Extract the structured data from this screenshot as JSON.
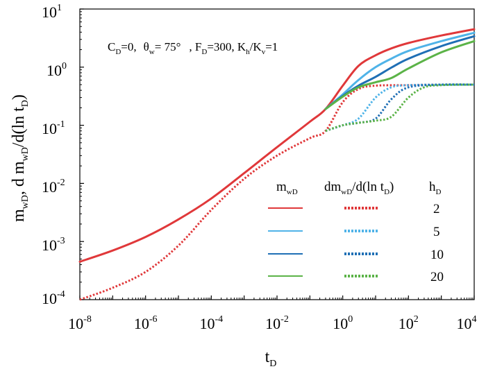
{
  "chart_data": {
    "type": "line",
    "x_scale": "log",
    "y_scale": "log",
    "xlim": [
      1e-08,
      10000
    ],
    "ylim": [
      0.0001,
      10
    ],
    "x_ticks": [
      {
        "base": "10",
        "exp": "-8"
      },
      {
        "base": "10",
        "exp": "-6"
      },
      {
        "base": "10",
        "exp": "-4"
      },
      {
        "base": "10",
        "exp": "-2"
      },
      {
        "base": "10",
        "exp": "0"
      },
      {
        "base": "10",
        "exp": "2"
      },
      {
        "base": "10",
        "exp": "4"
      }
    ],
    "y_ticks": [
      {
        "base": "10",
        "exp": "-4"
      },
      {
        "base": "10",
        "exp": "-3"
      },
      {
        "base": "10",
        "exp": "-2"
      },
      {
        "base": "10",
        "exp": "-1"
      },
      {
        "base": "10",
        "exp": "0"
      },
      {
        "base": "10",
        "exp": "1"
      }
    ],
    "xlabel": {
      "main": "t",
      "sub": "D"
    },
    "ylabel": {
      "part1": "m",
      "sub1": "wD",
      "part2": ", d m",
      "sub2": "wD",
      "part3": "/d(ln t",
      "sub3": "D",
      "part4": ")"
    },
    "annotation": {
      "c": "C",
      "c_sub": "D",
      "c_val": "=0,",
      "theta": "θ",
      "theta_sub": "w",
      "theta_val": "= 75°",
      "f": ", F",
      "f_sub": "D",
      "f_val": "=300, K",
      "kh_sub": "h",
      "slash": "/K",
      "kv_sub": "v",
      "k_val": "=1"
    },
    "legend": {
      "col1": {
        "main": "m",
        "sub": "wD"
      },
      "col2": {
        "main": "dm",
        "sub": "wD",
        "rest": "/d(ln t",
        "sub2": "D",
        "end": ")"
      },
      "col3": {
        "main": "h",
        "sub": "D"
      },
      "rows": [
        {
          "label": "2",
          "color": "#e0383a"
        },
        {
          "label": "5",
          "color": "#4fb3e8"
        },
        {
          "label": "10",
          "color": "#1f6fb5"
        },
        {
          "label": "20",
          "color": "#5bb347"
        }
      ]
    },
    "series": [
      {
        "name": "m_wD, h_D=2",
        "color": "#e0383a",
        "style": "solid",
        "x": [
          1e-08,
          1e-07,
          1e-06,
          1e-05,
          0.0001,
          0.001,
          0.01,
          0.1,
          0.3,
          1,
          3,
          10,
          30,
          100,
          1000,
          10000
        ],
        "y": [
          0.00045,
          0.0007,
          0.0012,
          0.0024,
          0.0055,
          0.015,
          0.042,
          0.115,
          0.19,
          0.48,
          1.05,
          1.6,
          2.1,
          2.6,
          3.5,
          4.5
        ]
      },
      {
        "name": "m_wD, h_D=5",
        "color": "#4fb3e8",
        "style": "solid",
        "x": [
          0.3,
          1,
          3,
          10,
          30,
          100,
          1000,
          10000
        ],
        "y": [
          0.19,
          0.34,
          0.6,
          1.0,
          1.4,
          1.9,
          2.8,
          3.9
        ]
      },
      {
        "name": "m_wD, h_D=10",
        "color": "#1f6fb5",
        "style": "solid",
        "x": [
          0.3,
          1,
          3,
          10,
          30,
          100,
          1000,
          10000
        ],
        "y": [
          0.19,
          0.32,
          0.48,
          0.68,
          0.98,
          1.4,
          2.3,
          3.4
        ]
      },
      {
        "name": "m_wD, h_D=20",
        "color": "#5bb347",
        "style": "solid",
        "x": [
          0.3,
          1,
          3,
          10,
          30,
          100,
          1000,
          10000
        ],
        "y": [
          0.19,
          0.31,
          0.45,
          0.55,
          0.65,
          0.95,
          1.8,
          2.8
        ]
      },
      {
        "name": "dm_wD/d(ln t_D), h_D=2",
        "color": "#e0383a",
        "style": "dotted",
        "x": [
          1e-08,
          1e-07,
          1e-06,
          1e-05,
          0.0001,
          0.001,
          0.01,
          0.1,
          0.3,
          1,
          3,
          10,
          100,
          1000,
          10000
        ],
        "y": [
          0.0001,
          0.00016,
          0.0003,
          0.00085,
          0.0035,
          0.012,
          0.03,
          0.06,
          0.08,
          0.25,
          0.42,
          0.48,
          0.49,
          0.5,
          0.5
        ]
      },
      {
        "name": "dm_wD/d(ln t_D), h_D=5",
        "color": "#4fb3e8",
        "style": "dotted",
        "x": [
          0.3,
          1,
          3,
          10,
          30,
          100,
          1000,
          10000
        ],
        "y": [
          0.08,
          0.1,
          0.13,
          0.3,
          0.45,
          0.49,
          0.5,
          0.5
        ]
      },
      {
        "name": "dm_wD/d(ln t_D), h_D=10",
        "color": "#1f6fb5",
        "style": "dotted",
        "x": [
          0.3,
          1,
          3,
          10,
          30,
          100,
          1000,
          10000
        ],
        "y": [
          0.08,
          0.1,
          0.11,
          0.13,
          0.28,
          0.45,
          0.5,
          0.5
        ]
      },
      {
        "name": "dm_wD/d(ln t_D), h_D=20",
        "color": "#5bb347",
        "style": "dotted",
        "x": [
          0.3,
          1,
          3,
          10,
          30,
          100,
          300,
          1000,
          10000
        ],
        "y": [
          0.08,
          0.1,
          0.11,
          0.12,
          0.14,
          0.3,
          0.45,
          0.49,
          0.5
        ]
      }
    ]
  }
}
